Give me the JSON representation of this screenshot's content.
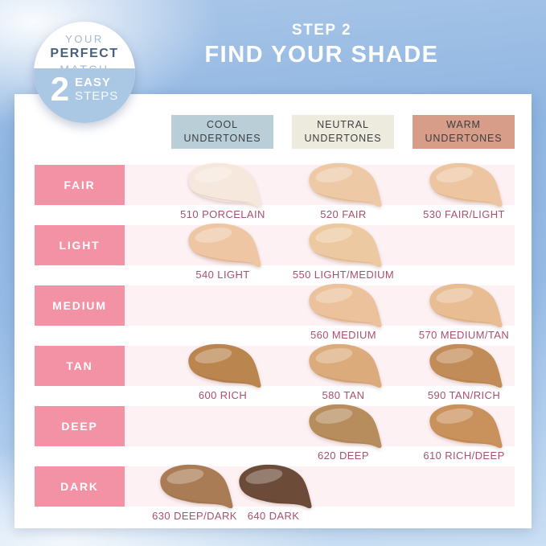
{
  "badge": {
    "your": "YOUR",
    "perfect": "PERFECT",
    "match": "MATCH",
    "number": "2",
    "easy": "EASY",
    "steps": "STEPS"
  },
  "title": {
    "step": "STEP 2",
    "headline": "FIND YOUR SHADE"
  },
  "columns": [
    {
      "id": "cool",
      "label": "COOL UNDERTONES",
      "bg": "#b9ced6"
    },
    {
      "id": "neutral",
      "label": "NEUTRAL UNDERTONES",
      "bg": "#edebdd"
    },
    {
      "id": "warm",
      "label": "WARM UNDERTONES",
      "bg": "#d79d88"
    }
  ],
  "rows": [
    {
      "label": "FAIR",
      "shades": [
        {
          "slot": "cool",
          "name": "510 PORCELAIN",
          "color": "#f6e8dc"
        },
        {
          "slot": "neutral",
          "name": "520 FAIR",
          "color": "#eec9a6"
        },
        {
          "slot": "warm",
          "name": "530 FAIR/LIGHT",
          "color": "#edc5a0"
        }
      ]
    },
    {
      "label": "LIGHT",
      "shades": [
        {
          "slot": "cool",
          "name": "540 LIGHT",
          "color": "#eec6a4"
        },
        {
          "slot": "neutral",
          "name": "550 LIGHT/MEDIUM",
          "color": "#ecc9a0"
        }
      ]
    },
    {
      "label": "MEDIUM",
      "shades": [
        {
          "slot": "neutral",
          "name": "560 MEDIUM",
          "color": "#ebc29b"
        },
        {
          "slot": "warm",
          "name": "570 MEDIUM/TAN",
          "color": "#e9bd93"
        }
      ]
    },
    {
      "label": "TAN",
      "shades": [
        {
          "slot": "cool",
          "name": "600 RICH",
          "color": "#ba854f"
        },
        {
          "slot": "neutral",
          "name": "580 TAN",
          "color": "#dcab7c"
        },
        {
          "slot": "warm",
          "name": "590 TAN/RICH",
          "color": "#c28c58"
        }
      ]
    },
    {
      "label": "DEEP",
      "shades": [
        {
          "slot": "neutral",
          "name": "620 DEEP",
          "color": "#b78d5e"
        },
        {
          "slot": "warm",
          "name": "610 RICH/DEEP",
          "color": "#c9915c"
        }
      ]
    },
    {
      "label": "DARK",
      "shades": [
        {
          "slot": "dark-a",
          "name": "630 DEEP/DARK",
          "color": "#a97c55"
        },
        {
          "slot": "dark-b",
          "name": "640 DARK",
          "color": "#6c4b39"
        }
      ]
    }
  ],
  "palette": {
    "row_label_bg": "#f492a5",
    "row_band_bg": "#fdf1f3",
    "shade_label_color": "#a8516d",
    "badge_blue": "#aac7e4",
    "badge_dark_text": "#47617a",
    "badge_light_text": "#a3b8cc",
    "title_text": "#ffffff"
  },
  "chart_data": {
    "type": "table",
    "title": "STEP 2 — FIND YOUR SHADE",
    "columns": [
      "COOL UNDERTONES",
      "NEUTRAL UNDERTONES",
      "WARM UNDERTONES"
    ],
    "row_categories": [
      "FAIR",
      "LIGHT",
      "MEDIUM",
      "TAN",
      "DEEP",
      "DARK"
    ],
    "cells": [
      [
        "510 PORCELAIN",
        "520 FAIR",
        "530 FAIR/LIGHT"
      ],
      [
        "540 LIGHT",
        "550 LIGHT/MEDIUM",
        ""
      ],
      [
        "",
        "560 MEDIUM",
        "570 MEDIUM/TAN"
      ],
      [
        "600 RICH",
        "580 TAN",
        "590 TAN/RICH"
      ],
      [
        "",
        "620 DEEP",
        "610 RICH/DEEP"
      ],
      [
        "630 DEEP/DARK, 640 DARK",
        "",
        ""
      ]
    ]
  }
}
